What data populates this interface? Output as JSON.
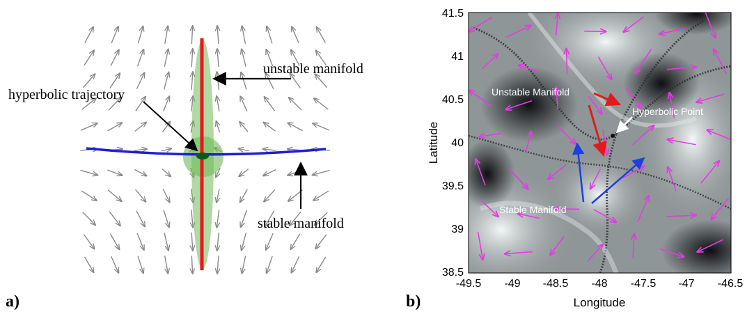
{
  "panel_a": {
    "label": "a)",
    "annotations": {
      "unstable": "unstable manifold",
      "hyperbolic": "hyperbolic trajectory",
      "stable": "stable manifold"
    }
  },
  "panel_b": {
    "label": "b)",
    "xlabel": "Longitude",
    "ylabel": "Latitude",
    "xticks": [
      "-49.5",
      "-49",
      "-48.5",
      "-48",
      "-47.5",
      "-47",
      "-46.5"
    ],
    "yticks": [
      "41.5",
      "41",
      "40.5",
      "40",
      "39.5",
      "39",
      "38.5"
    ],
    "annotations": {
      "unstable": "Unstable Manifold",
      "hyperbolic": "Hyperbolic Point",
      "stable": "Stable Manifold"
    }
  },
  "chart_data": {
    "type": "scatter",
    "xlabel": "Longitude",
    "ylabel": "Latitude",
    "xlim": [
      -49.5,
      -46.5
    ],
    "ylim": [
      38.5,
      41.5
    ],
    "x": [
      -47.85
    ],
    "y": [
      40.05
    ],
    "annotations": [
      "Unstable Manifold",
      "Hyperbolic Point",
      "Stable Manifold"
    ]
  },
  "colors": {
    "vector_field_a": "#8a8a8a",
    "unstable_a": "#e31a1c",
    "stable_a": "#1f1fd0",
    "ellipse_a": "#6fb95a",
    "vector_field_b": "#e23de2",
    "unstable_arrow_b": "#e31a1c",
    "stable_arrow_b": "#1f3fe0",
    "hyperbolic_arrow_b": "#ffffff"
  }
}
